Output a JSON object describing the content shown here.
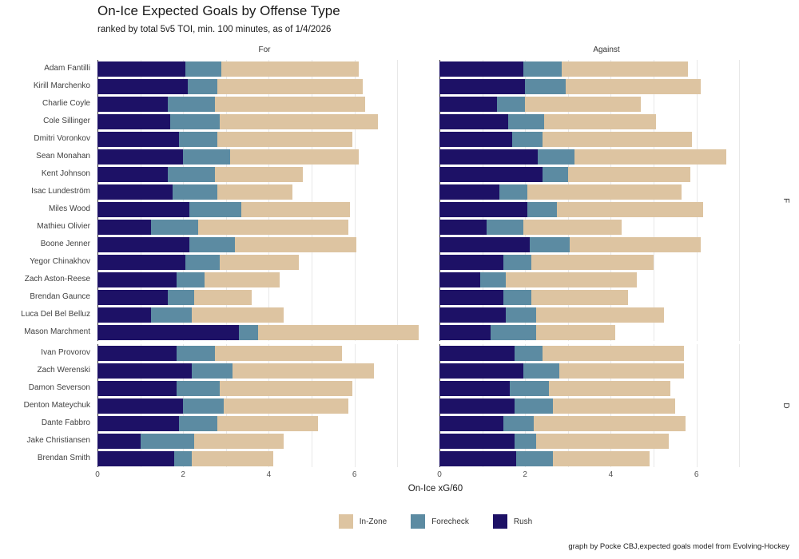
{
  "title": "On-Ice Expected Goals by Offense Type",
  "subtitle": "ranked by total 5v5 TOI, min. 100 minutes, as of 1/4/2026",
  "facets": {
    "columns": [
      "For",
      "Against"
    ],
    "rows": [
      "F",
      "D"
    ]
  },
  "axis": {
    "x_label": "On-Ice xG/60",
    "tick_labels": [
      "0",
      "2",
      "4",
      "6"
    ],
    "tick_values": [
      0,
      2,
      4,
      6
    ]
  },
  "legend": [
    {
      "label": "In-Zone",
      "color": "#ddc4a1"
    },
    {
      "label": "Forecheck",
      "color": "#5c8ba2"
    },
    {
      "label": "Rush",
      "color": "#1d1166"
    }
  ],
  "caption": "graph by Pocke CBJ,expected goals model from Evolving-Hockey",
  "chart_data": {
    "type": "bar",
    "orientation": "horizontal",
    "stacked": true,
    "stack_order": [
      "rush",
      "forecheck",
      "in_zone"
    ],
    "colors": {
      "rush": "#1d1166",
      "forecheck": "#5c8ba2",
      "in_zone": "#ddc4a1"
    },
    "x_range": [
      0,
      7.8
    ],
    "x_major_ticks": [
      0,
      2,
      4,
      6
    ],
    "x_gridlines": [
      0,
      1,
      2,
      3,
      4,
      5,
      6,
      7
    ],
    "xlabel": "On-Ice xG/60",
    "legend_position": "bottom",
    "groups": [
      {
        "facet": "F",
        "players": [
          {
            "name": "Adam Fantilli",
            "for": {
              "rush": 2.05,
              "forecheck": 0.85,
              "in_zone": 3.2
            },
            "against": {
              "rush": 1.95,
              "forecheck": 0.9,
              "in_zone": 2.95
            }
          },
          {
            "name": "Kirill Marchenko",
            "for": {
              "rush": 2.1,
              "forecheck": 0.7,
              "in_zone": 3.4
            },
            "against": {
              "rush": 2.0,
              "forecheck": 0.95,
              "in_zone": 3.15
            }
          },
          {
            "name": "Charlie Coyle",
            "for": {
              "rush": 1.65,
              "forecheck": 1.1,
              "in_zone": 3.5
            },
            "against": {
              "rush": 1.35,
              "forecheck": 0.65,
              "in_zone": 2.7
            }
          },
          {
            "name": "Cole Sillinger",
            "for": {
              "rush": 1.7,
              "forecheck": 1.15,
              "in_zone": 3.7
            },
            "against": {
              "rush": 1.6,
              "forecheck": 0.85,
              "in_zone": 2.6
            }
          },
          {
            "name": "Dmitri Voronkov",
            "for": {
              "rush": 1.9,
              "forecheck": 0.9,
              "in_zone": 3.15
            },
            "against": {
              "rush": 1.7,
              "forecheck": 0.7,
              "in_zone": 3.5
            }
          },
          {
            "name": "Sean Monahan",
            "for": {
              "rush": 2.0,
              "forecheck": 1.1,
              "in_zone": 3.0
            },
            "against": {
              "rush": 2.3,
              "forecheck": 0.85,
              "in_zone": 3.55
            }
          },
          {
            "name": "Kent Johnson",
            "for": {
              "rush": 1.65,
              "forecheck": 1.1,
              "in_zone": 2.05
            },
            "against": {
              "rush": 2.4,
              "forecheck": 0.6,
              "in_zone": 2.85
            }
          },
          {
            "name": "Isac Lundeström",
            "for": {
              "rush": 1.75,
              "forecheck": 1.05,
              "in_zone": 1.75
            },
            "against": {
              "rush": 1.4,
              "forecheck": 0.65,
              "in_zone": 3.6
            }
          },
          {
            "name": "Miles Wood",
            "for": {
              "rush": 2.15,
              "forecheck": 1.2,
              "in_zone": 2.55
            },
            "against": {
              "rush": 2.05,
              "forecheck": 0.7,
              "in_zone": 3.4
            }
          },
          {
            "name": "Mathieu Olivier",
            "for": {
              "rush": 1.25,
              "forecheck": 1.1,
              "in_zone": 3.5
            },
            "against": {
              "rush": 1.1,
              "forecheck": 0.85,
              "in_zone": 2.3
            }
          },
          {
            "name": "Boone Jenner",
            "for": {
              "rush": 2.15,
              "forecheck": 1.05,
              "in_zone": 2.85
            },
            "against": {
              "rush": 2.1,
              "forecheck": 0.95,
              "in_zone": 3.05
            }
          },
          {
            "name": "Yegor Chinakhov",
            "for": {
              "rush": 2.05,
              "forecheck": 0.8,
              "in_zone": 1.85
            },
            "against": {
              "rush": 1.5,
              "forecheck": 0.65,
              "in_zone": 2.85
            }
          },
          {
            "name": "Zach Aston-Reese",
            "for": {
              "rush": 1.85,
              "forecheck": 0.65,
              "in_zone": 1.75
            },
            "against": {
              "rush": 0.95,
              "forecheck": 0.6,
              "in_zone": 3.05
            }
          },
          {
            "name": "Brendan Gaunce",
            "for": {
              "rush": 1.65,
              "forecheck": 0.6,
              "in_zone": 1.35
            },
            "against": {
              "rush": 1.5,
              "forecheck": 0.65,
              "in_zone": 2.25
            }
          },
          {
            "name": "Luca Del Bel Belluz",
            "for": {
              "rush": 1.25,
              "forecheck": 0.95,
              "in_zone": 2.15
            },
            "against": {
              "rush": 1.55,
              "forecheck": 0.7,
              "in_zone": 3.0
            }
          },
          {
            "name": "Mason Marchment",
            "for": {
              "rush": 3.3,
              "forecheck": 0.45,
              "in_zone": 3.75
            },
            "against": {
              "rush": 1.2,
              "forecheck": 1.05,
              "in_zone": 1.85
            }
          }
        ]
      },
      {
        "facet": "D",
        "players": [
          {
            "name": "Ivan Provorov",
            "for": {
              "rush": 1.85,
              "forecheck": 0.9,
              "in_zone": 2.95
            },
            "against": {
              "rush": 1.75,
              "forecheck": 0.65,
              "in_zone": 3.3
            }
          },
          {
            "name": "Zach Werenski",
            "for": {
              "rush": 2.2,
              "forecheck": 0.95,
              "in_zone": 3.3
            },
            "against": {
              "rush": 1.95,
              "forecheck": 0.85,
              "in_zone": 2.9
            }
          },
          {
            "name": "Damon Severson",
            "for": {
              "rush": 1.85,
              "forecheck": 1.0,
              "in_zone": 3.1
            },
            "against": {
              "rush": 1.65,
              "forecheck": 0.9,
              "in_zone": 2.85
            }
          },
          {
            "name": "Denton Mateychuk",
            "for": {
              "rush": 2.0,
              "forecheck": 0.95,
              "in_zone": 2.9
            },
            "against": {
              "rush": 1.75,
              "forecheck": 0.9,
              "in_zone": 2.85
            }
          },
          {
            "name": "Dante Fabbro",
            "for": {
              "rush": 1.9,
              "forecheck": 0.9,
              "in_zone": 2.35
            },
            "against": {
              "rush": 1.5,
              "forecheck": 0.7,
              "in_zone": 3.55
            }
          },
          {
            "name": "Jake Christiansen",
            "for": {
              "rush": 1.0,
              "forecheck": 1.25,
              "in_zone": 2.1
            },
            "against": {
              "rush": 1.75,
              "forecheck": 0.5,
              "in_zone": 3.1
            }
          },
          {
            "name": "Brendan Smith",
            "for": {
              "rush": 1.8,
              "forecheck": 0.4,
              "in_zone": 1.9
            },
            "against": {
              "rush": 1.8,
              "forecheck": 0.85,
              "in_zone": 2.25
            }
          }
        ]
      }
    ]
  }
}
